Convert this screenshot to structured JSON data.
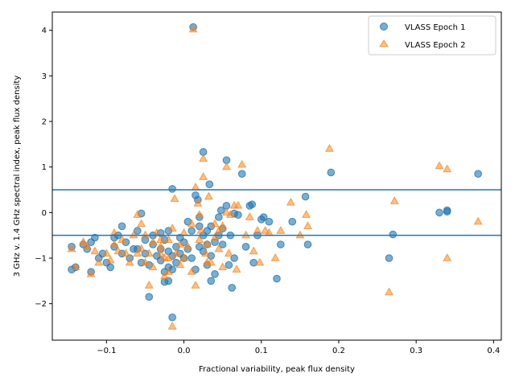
{
  "chart_data": {
    "type": "scatter",
    "title": "",
    "xlabel": "Fractional variability, peak flux density",
    "ylabel": "3 GHz v. 1.4 GHz spectral index, peak flux density",
    "xlim": [
      -0.17,
      0.41
    ],
    "ylim": [
      -2.8,
      4.4
    ],
    "xticks": [
      -0.1,
      0.0,
      0.1,
      0.2,
      0.3,
      0.4
    ],
    "xtick_labels": [
      "−0.1",
      "0.0",
      "0.1",
      "0.2",
      "0.3",
      "0.4"
    ],
    "yticks": [
      -2,
      -1,
      0,
      1,
      2,
      3,
      4
    ],
    "ytick_labels": [
      "−2",
      "−1",
      "0",
      "1",
      "2",
      "3",
      "4"
    ],
    "grid": false,
    "legend_position": "top-right",
    "hlines": [
      {
        "y": 0.5,
        "color": "#1f77b4"
      },
      {
        "y": -0.5,
        "color": "#1f77b4"
      }
    ],
    "series": [
      {
        "name": "VLASS Epoch 1",
        "marker": "circle",
        "color": "#1f77b4",
        "points": [
          [
            -0.145,
            -0.75
          ],
          [
            -0.145,
            -1.25
          ],
          [
            -0.14,
            -1.2
          ],
          [
            -0.13,
            -0.7
          ],
          [
            -0.125,
            -0.8
          ],
          [
            -0.12,
            -0.65
          ],
          [
            -0.12,
            -1.3
          ],
          [
            -0.115,
            -0.55
          ],
          [
            -0.11,
            -1.0
          ],
          [
            -0.105,
            -0.9
          ],
          [
            -0.1,
            -1.1
          ],
          [
            -0.095,
            -1.2
          ],
          [
            -0.09,
            -0.75
          ],
          [
            -0.085,
            -0.5
          ],
          [
            -0.08,
            -0.3
          ],
          [
            -0.08,
            -0.9
          ],
          [
            -0.075,
            -0.65
          ],
          [
            -0.07,
            -1.0
          ],
          [
            -0.065,
            -0.8
          ],
          [
            -0.06,
            -0.4
          ],
          [
            -0.055,
            -0.02
          ],
          [
            -0.055,
            -1.1
          ],
          [
            -0.05,
            -0.6
          ],
          [
            -0.05,
            -0.9
          ],
          [
            -0.045,
            -1.85
          ],
          [
            -0.045,
            -1.15
          ],
          [
            -0.04,
            -0.7
          ],
          [
            -0.04,
            -0.5
          ],
          [
            -0.035,
            -0.95
          ],
          [
            -0.03,
            -0.8
          ],
          [
            -0.03,
            -1.05
          ],
          [
            -0.025,
            -0.6
          ],
          [
            -0.025,
            -1.3
          ],
          [
            -0.02,
            -0.4
          ],
          [
            -0.02,
            -0.85
          ],
          [
            -0.02,
            -1.5
          ],
          [
            -0.015,
            -1.25
          ],
          [
            -0.015,
            -0.95
          ],
          [
            -0.01,
            -0.75
          ],
          [
            -0.01,
            -1.1
          ],
          [
            -0.005,
            -0.55
          ],
          [
            -0.005,
            -0.9
          ],
          [
            -0.02,
            -1.2
          ],
          [
            -0.015,
            -2.3
          ],
          [
            -0.015,
            0.52
          ],
          [
            0.0,
            -0.65
          ],
          [
            0.0,
            -1.0
          ],
          [
            0.005,
            -0.2
          ],
          [
            0.005,
            -0.8
          ],
          [
            0.01,
            -1.0
          ],
          [
            0.01,
            -0.4
          ],
          [
            0.012,
            4.07
          ],
          [
            0.015,
            0.38
          ],
          [
            0.015,
            -1.25
          ],
          [
            0.018,
            0.28
          ],
          [
            0.02,
            -0.1
          ],
          [
            0.02,
            -0.3
          ],
          [
            0.02,
            -0.75
          ],
          [
            0.025,
            1.33
          ],
          [
            0.025,
            -0.5
          ],
          [
            0.025,
            -0.85
          ],
          [
            0.03,
            -0.7
          ],
          [
            0.03,
            -1.15
          ],
          [
            0.033,
            0.62
          ],
          [
            0.035,
            -0.3
          ],
          [
            0.035,
            -0.95
          ],
          [
            0.035,
            -1.5
          ],
          [
            0.04,
            -0.65
          ],
          [
            0.04,
            -1.35
          ],
          [
            0.045,
            -0.5
          ],
          [
            0.045,
            -0.1
          ],
          [
            0.048,
            0.05
          ],
          [
            0.05,
            -0.35
          ],
          [
            0.05,
            -0.7
          ],
          [
            0.055,
            1.15
          ],
          [
            0.055,
            0.15
          ],
          [
            0.058,
            -1.15
          ],
          [
            0.06,
            -0.5
          ],
          [
            0.062,
            -1.65
          ],
          [
            0.065,
            -0.02
          ],
          [
            0.065,
            -1.0
          ],
          [
            0.07,
            -0.05
          ],
          [
            0.075,
            0.85
          ],
          [
            0.08,
            -0.75
          ],
          [
            0.085,
            0.15
          ],
          [
            0.088,
            0.18
          ],
          [
            0.09,
            -1.1
          ],
          [
            0.095,
            -0.5
          ],
          [
            0.1,
            -0.15
          ],
          [
            0.103,
            -0.1
          ],
          [
            0.11,
            -0.2
          ],
          [
            0.12,
            -1.45
          ],
          [
            0.125,
            -0.7
          ],
          [
            0.14,
            -0.2
          ],
          [
            0.157,
            0.35
          ],
          [
            0.16,
            -0.7
          ],
          [
            0.19,
            0.88
          ],
          [
            0.265,
            -1.0
          ],
          [
            0.27,
            -0.48
          ],
          [
            0.33,
            0.0
          ],
          [
            0.34,
            0.02
          ],
          [
            0.34,
            0.05
          ],
          [
            0.38,
            0.85
          ],
          [
            -0.06,
            -0.8
          ],
          [
            -0.03,
            -0.45
          ],
          [
            -0.025,
            -1.52
          ],
          [
            0.03,
            -0.4
          ],
          [
            -0.09,
            -0.55
          ]
        ]
      },
      {
        "name": "VLASS Epoch 2",
        "marker": "triangle",
        "color": "#ff7f0e",
        "points": [
          [
            -0.145,
            -0.8
          ],
          [
            -0.14,
            -1.2
          ],
          [
            -0.13,
            -0.65
          ],
          [
            -0.125,
            -0.75
          ],
          [
            -0.12,
            -1.35
          ],
          [
            -0.115,
            -0.85
          ],
          [
            -0.11,
            -1.1
          ],
          [
            -0.1,
            -0.9
          ],
          [
            -0.095,
            -1.05
          ],
          [
            -0.09,
            -0.45
          ],
          [
            -0.09,
            -0.7
          ],
          [
            -0.085,
            -0.85
          ],
          [
            -0.08,
            -0.6
          ],
          [
            -0.075,
            -0.9
          ],
          [
            -0.07,
            -1.1
          ],
          [
            -0.065,
            -0.5
          ],
          [
            -0.06,
            -0.05
          ],
          [
            -0.055,
            -0.25
          ],
          [
            -0.055,
            -0.8
          ],
          [
            -0.05,
            -1.1
          ],
          [
            -0.05,
            -0.5
          ],
          [
            -0.045,
            -1.6
          ],
          [
            -0.045,
            -0.9
          ],
          [
            -0.04,
            -0.65
          ],
          [
            -0.04,
            -1.2
          ],
          [
            -0.035,
            -0.45
          ],
          [
            -0.03,
            -0.9
          ],
          [
            -0.03,
            -0.75
          ],
          [
            -0.025,
            -1.0
          ],
          [
            -0.025,
            -1.4
          ],
          [
            -0.02,
            -0.6
          ],
          [
            -0.02,
            -1.3
          ],
          [
            -0.015,
            -0.35
          ],
          [
            -0.015,
            -2.5
          ],
          [
            -0.012,
            0.3
          ],
          [
            -0.01,
            -0.9
          ],
          [
            -0.005,
            -0.7
          ],
          [
            -0.005,
            -1.15
          ],
          [
            0.0,
            -0.45
          ],
          [
            0.0,
            -1.0
          ],
          [
            0.005,
            -0.75
          ],
          [
            0.01,
            -1.3
          ],
          [
            0.01,
            -0.25
          ],
          [
            0.012,
            4.02
          ],
          [
            0.015,
            0.55
          ],
          [
            0.015,
            -1.6
          ],
          [
            0.018,
            0.2
          ],
          [
            0.02,
            -0.05
          ],
          [
            0.022,
            -0.4
          ],
          [
            0.025,
            0.78
          ],
          [
            0.025,
            1.18
          ],
          [
            0.028,
            -0.9
          ],
          [
            0.03,
            -0.7
          ],
          [
            0.032,
            0.35
          ],
          [
            0.035,
            -1.1
          ],
          [
            0.04,
            -0.55
          ],
          [
            0.04,
            -0.25
          ],
          [
            0.045,
            -0.8
          ],
          [
            0.05,
            -1.2
          ],
          [
            0.05,
            -0.3
          ],
          [
            0.055,
            0.0
          ],
          [
            0.055,
            1.0
          ],
          [
            0.058,
            -0.9
          ],
          [
            0.06,
            -0.05
          ],
          [
            0.065,
            0.15
          ],
          [
            0.068,
            -1.25
          ],
          [
            0.07,
            0.15
          ],
          [
            0.075,
            1.05
          ],
          [
            0.08,
            -0.5
          ],
          [
            0.085,
            -0.1
          ],
          [
            0.09,
            -0.85
          ],
          [
            0.095,
            -0.4
          ],
          [
            0.098,
            -1.1
          ],
          [
            0.105,
            -0.4
          ],
          [
            0.11,
            -0.45
          ],
          [
            0.118,
            -1.0
          ],
          [
            0.125,
            -0.4
          ],
          [
            0.138,
            0.22
          ],
          [
            0.15,
            -0.5
          ],
          [
            0.158,
            -0.05
          ],
          [
            0.16,
            -0.3
          ],
          [
            0.188,
            1.4
          ],
          [
            0.265,
            -1.75
          ],
          [
            0.272,
            0.25
          ],
          [
            0.33,
            1.02
          ],
          [
            0.34,
            0.95
          ],
          [
            0.34,
            -1.0
          ],
          [
            0.38,
            -0.2
          ],
          [
            -0.03,
            -0.6
          ],
          [
            -0.02,
            -1.0
          ],
          [
            0.02,
            -0.6
          ],
          [
            0.045,
            -0.4
          ],
          [
            0.03,
            -1.1
          ],
          [
            -0.06,
            -0.9
          ]
        ]
      }
    ]
  }
}
